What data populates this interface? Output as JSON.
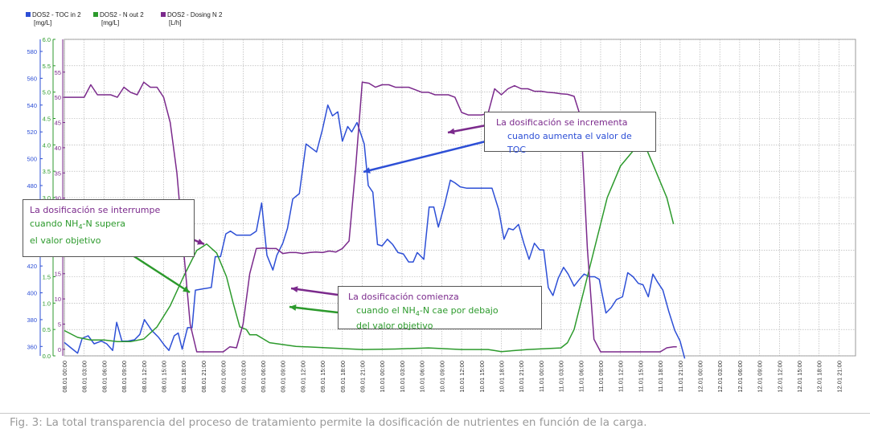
{
  "chart_data": {
    "type": "line",
    "legend": [
      {
        "name": "DOS2 - TOC in 2",
        "unit": "[mg/L]",
        "color": "#2d4fd6"
      },
      {
        "name": "DOS2 - N out 2",
        "unit": "[mg/L]",
        "color": "#2c9a2c"
      },
      {
        "name": "DOS2 - Dosing N 2",
        "unit": "[L/h]",
        "color": "#7b2a8c"
      }
    ],
    "legend_placement": "top-left",
    "grid": true,
    "y_left": {
      "ticks": [
        "580",
        "560",
        "540",
        "520",
        "500",
        "480",
        "460",
        "440",
        "420",
        "400",
        "380",
        "360"
      ],
      "range": [
        353,
        589
      ],
      "color": "#2d4fd6"
    },
    "y_n": {
      "ticks": [
        "6.0",
        "5.5",
        "5.0",
        "4.5",
        "4.0",
        "3.5",
        "3.0",
        "2.5",
        "2.0",
        "1.5",
        "1.0",
        "0.5",
        "0.0"
      ],
      "range": [
        0,
        6.0
      ],
      "color": "#2c9a2c"
    },
    "y_dose": {
      "ticks": [
        "55",
        "50",
        "45",
        "40",
        "35",
        "30",
        "25",
        "20",
        "15",
        "10",
        "5",
        "0"
      ],
      "range": [
        -1.3,
        61.5
      ],
      "color": "#7b2a8c"
    },
    "x_ticks": [
      "08.01 00:00",
      "08.01 03:00",
      "08.01 06:00",
      "08.01 09:00",
      "08.01 12:00",
      "08.01 15:00",
      "08.01 18:00",
      "08.01 21:00",
      "09.01 00:00",
      "09.01 03:00",
      "09.01 06:00",
      "09.01 09:00",
      "09.01 12:00",
      "09.01 15:00",
      "09.01 18:00",
      "09.01 21:00",
      "10.01 00:00",
      "10.01 03:00",
      "10.01 06:00",
      "10.01 09:00",
      "10.01 12:00",
      "10.01 15:00",
      "10.01 18:00",
      "10.01 21:00",
      "11.01 00:00",
      "11.01 03:00",
      "11.01 06:00",
      "11.01 09:00",
      "11.01 12:00",
      "11.01 15:00",
      "11.01 18:00",
      "11.01 21:00",
      "12.01 00:00",
      "12.01 03:00",
      "12.01 06:00",
      "12.01 09:00",
      "12.01 12:00",
      "12.01 15:00",
      "12.01 18:00",
      "12.01 21:00"
    ],
    "x_range_hours": [
      0,
      119.5
    ],
    "series": [
      {
        "name": "DOS2 - TOC in 2",
        "axis": "y_left",
        "color": "#2d4fd6",
        "points": [
          [
            0,
            363
          ],
          [
            1,
            359
          ],
          [
            2,
            355
          ],
          [
            2.7,
            366
          ],
          [
            3.6,
            368
          ],
          [
            4.5,
            362
          ],
          [
            5.6,
            364
          ],
          [
            6.4,
            362
          ],
          [
            7.3,
            357
          ],
          [
            7.9,
            378
          ],
          [
            8.7,
            364
          ],
          [
            9.6,
            364
          ],
          [
            10.6,
            365
          ],
          [
            11.4,
            369
          ],
          [
            12.1,
            380
          ],
          [
            13.2,
            372
          ],
          [
            14.2,
            367
          ],
          [
            15.1,
            361
          ],
          [
            15.8,
            357
          ],
          [
            16.6,
            368
          ],
          [
            17.2,
            370
          ],
          [
            17.8,
            358
          ],
          [
            18.6,
            374
          ],
          [
            19.3,
            374
          ],
          [
            19.8,
            402
          ],
          [
            21,
            403
          ],
          [
            22.2,
            404
          ],
          [
            22.8,
            427
          ],
          [
            23.6,
            427
          ],
          [
            24.4,
            444
          ],
          [
            25.1,
            446
          ],
          [
            26,
            443
          ],
          [
            27,
            443
          ],
          [
            28.1,
            443
          ],
          [
            29,
            446
          ],
          [
            29.8,
            467
          ],
          [
            30.6,
            428
          ],
          [
            31.5,
            417
          ],
          [
            32.1,
            428
          ],
          [
            33,
            437
          ],
          [
            33.7,
            448
          ],
          [
            34.5,
            470
          ],
          [
            35.5,
            474
          ],
          [
            36.5,
            511
          ],
          [
            37.3,
            508
          ],
          [
            38.1,
            505
          ],
          [
            39,
            522
          ],
          [
            39.8,
            540
          ],
          [
            40.5,
            532
          ],
          [
            41.3,
            535
          ],
          [
            42,
            513
          ],
          [
            42.8,
            524
          ],
          [
            43.4,
            520
          ],
          [
            44.2,
            527
          ],
          [
            45.3,
            511
          ],
          [
            45.9,
            480
          ],
          [
            46.6,
            475
          ],
          [
            47.3,
            436
          ],
          [
            48,
            435
          ],
          [
            48.8,
            440
          ],
          [
            49.6,
            436
          ],
          [
            50.4,
            430
          ],
          [
            51.2,
            429
          ],
          [
            52,
            423
          ],
          [
            52.7,
            423
          ],
          [
            53.3,
            430
          ],
          [
            54.3,
            425
          ],
          [
            55.1,
            464
          ],
          [
            55.8,
            464
          ],
          [
            56.5,
            449
          ],
          [
            57.4,
            465
          ],
          [
            58.3,
            484
          ],
          [
            59,
            482
          ],
          [
            59.8,
            479
          ],
          [
            60.8,
            478
          ],
          [
            61.6,
            478
          ],
          [
            62.6,
            478
          ],
          [
            63.7,
            478
          ],
          [
            64.6,
            478
          ],
          [
            65.6,
            462
          ],
          [
            66.4,
            440
          ],
          [
            67.1,
            448
          ],
          [
            67.8,
            447
          ],
          [
            68.6,
            451
          ],
          [
            69.4,
            437
          ],
          [
            70.2,
            425
          ],
          [
            71,
            437
          ],
          [
            71.8,
            432
          ],
          [
            72.4,
            432
          ],
          [
            73.1,
            404
          ],
          [
            73.8,
            398
          ],
          [
            74.6,
            411
          ],
          [
            75.4,
            419
          ],
          [
            76.1,
            414
          ],
          [
            77,
            405
          ],
          [
            77.8,
            410
          ],
          [
            78.5,
            414
          ],
          [
            79.3,
            412
          ],
          [
            80.1,
            412
          ],
          [
            80.8,
            410
          ],
          [
            81.8,
            385
          ],
          [
            82.6,
            389
          ],
          [
            83.4,
            395
          ],
          [
            84.3,
            397
          ],
          [
            85.1,
            415
          ],
          [
            85.9,
            412
          ],
          [
            86.7,
            407
          ],
          [
            87.4,
            406
          ],
          [
            88.2,
            397
          ],
          [
            88.9,
            414
          ],
          [
            89.6,
            408
          ],
          [
            90.4,
            402
          ],
          [
            91.3,
            386
          ],
          [
            92.2,
            372
          ],
          [
            93,
            364
          ],
          [
            93.7,
            351
          ]
        ]
      },
      {
        "name": "DOS2 - N out 2",
        "axis": "y_n",
        "color": "#2c9a2c",
        "points": [
          [
            0,
            0.48
          ],
          [
            2,
            0.35
          ],
          [
            4,
            0.3
          ],
          [
            6,
            0.3
          ],
          [
            8,
            0.27
          ],
          [
            10,
            0.27
          ],
          [
            12,
            0.32
          ],
          [
            14,
            0.55
          ],
          [
            16,
            0.95
          ],
          [
            18,
            1.5
          ],
          [
            20,
            2.0
          ],
          [
            21.5,
            2.12
          ],
          [
            23,
            1.95
          ],
          [
            24.5,
            1.5
          ],
          [
            25.5,
            1.0
          ],
          [
            26.5,
            0.55
          ],
          [
            27.5,
            0.5
          ],
          [
            28,
            0.4
          ],
          [
            29,
            0.4
          ],
          [
            31,
            0.25
          ],
          [
            35,
            0.18
          ],
          [
            40,
            0.15
          ],
          [
            45,
            0.12
          ],
          [
            50,
            0.13
          ],
          [
            55,
            0.15
          ],
          [
            60,
            0.12
          ],
          [
            64,
            0.12
          ],
          [
            65,
            0.1
          ],
          [
            66,
            0.08
          ],
          [
            70,
            0.12
          ],
          [
            75,
            0.15
          ],
          [
            76,
            0.25
          ],
          [
            77,
            0.5
          ],
          [
            79,
            1.5
          ],
          [
            82,
            3.0
          ],
          [
            84,
            3.6
          ],
          [
            86,
            3.9
          ],
          [
            88,
            3.9
          ],
          [
            89,
            3.6
          ],
          [
            91,
            3.0
          ],
          [
            92,
            2.5
          ]
        ]
      },
      {
        "name": "DOS2 - Dosing N 2",
        "axis": "y_dose",
        "color": "#7b2a8c",
        "points": [
          [
            0,
            50
          ],
          [
            3,
            50
          ],
          [
            4,
            52.5
          ],
          [
            5,
            50.5
          ],
          [
            7,
            50.5
          ],
          [
            8,
            50
          ],
          [
            9,
            52
          ],
          [
            10,
            51
          ],
          [
            11,
            50.5
          ],
          [
            12,
            53
          ],
          [
            13,
            52
          ],
          [
            14,
            52
          ],
          [
            15,
            50
          ],
          [
            16,
            45
          ],
          [
            17,
            35
          ],
          [
            18,
            20
          ],
          [
            19,
            5
          ],
          [
            20,
            -0.5
          ],
          [
            21,
            -0.5
          ],
          [
            22,
            -0.5
          ],
          [
            23,
            -0.5
          ],
          [
            24,
            -0.5
          ],
          [
            25,
            0.5
          ],
          [
            26,
            0.3
          ],
          [
            27,
            5
          ],
          [
            28,
            15
          ],
          [
            29,
            20
          ],
          [
            30,
            20.1
          ],
          [
            31,
            20
          ],
          [
            32,
            20
          ],
          [
            33,
            19
          ],
          [
            34,
            19.2
          ],
          [
            35,
            19.2
          ],
          [
            36,
            19
          ],
          [
            37,
            19.2
          ],
          [
            38,
            19.3
          ],
          [
            39,
            19.2
          ],
          [
            40,
            19.5
          ],
          [
            41,
            19.3
          ],
          [
            42,
            20
          ],
          [
            43,
            21.5
          ],
          [
            44,
            36
          ],
          [
            45,
            53
          ],
          [
            46,
            52.8
          ],
          [
            47,
            52
          ],
          [
            48,
            52.5
          ],
          [
            49,
            52.5
          ],
          [
            50,
            52
          ],
          [
            51,
            52
          ],
          [
            52,
            52
          ],
          [
            53,
            51.5
          ],
          [
            54,
            51
          ],
          [
            55,
            51
          ],
          [
            56,
            50.5
          ],
          [
            57,
            50.5
          ],
          [
            58,
            50.5
          ],
          [
            59,
            50
          ],
          [
            60,
            47
          ],
          [
            61,
            46.5
          ],
          [
            62,
            46.5
          ],
          [
            63,
            46.5
          ],
          [
            64,
            46.8
          ],
          [
            65,
            51.7
          ],
          [
            66,
            50.5
          ],
          [
            67,
            51.7
          ],
          [
            68,
            52.3
          ],
          [
            69,
            51.7
          ],
          [
            70,
            51.7
          ],
          [
            71,
            51.2
          ],
          [
            72,
            51.2
          ],
          [
            73,
            51
          ],
          [
            74,
            50.9
          ],
          [
            75,
            50.7
          ],
          [
            76,
            50.6
          ],
          [
            77,
            50.2
          ],
          [
            78,
            46
          ],
          [
            79,
            20
          ],
          [
            80,
            2
          ],
          [
            81,
            -0.5
          ],
          [
            82,
            -0.5
          ],
          [
            84,
            -0.5
          ],
          [
            86,
            -0.5
          ],
          [
            88,
            -0.5
          ],
          [
            90,
            -0.5
          ],
          [
            91,
            0.3
          ],
          [
            92,
            0.5
          ],
          [
            92.5,
            0.5
          ]
        ]
      }
    ]
  },
  "annotations": {
    "a1": {
      "line1": "La dosificación se incrementa",
      "line2": "cuando aumenta el valor de TOC"
    },
    "a2": {
      "line1": "La dosificación se interrumpe",
      "line2a": "cuando NH",
      "sub": "4",
      "line2b": "-N supera",
      "line3": "el valor objetivo"
    },
    "a3": {
      "line1": "La dosificación comienza",
      "line2a": "cuando el NH",
      "sub": "4",
      "line2b": "-N cae por debajo",
      "line3": "del valor objetivo"
    }
  },
  "caption": "Fig. 3: La total transparencia del proceso de tratamiento permite la dosificación de nutrientes en función de la carga."
}
